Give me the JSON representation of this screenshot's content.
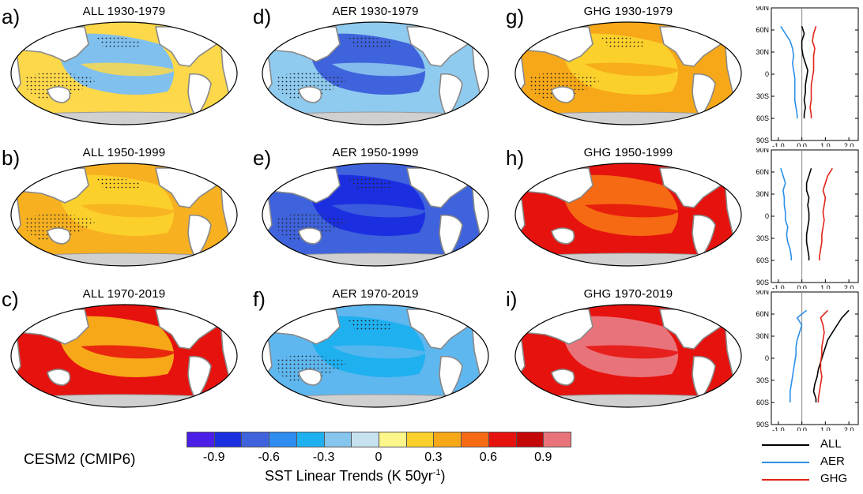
{
  "model_label": "CESM2 (CMIP6)",
  "colorbar": {
    "title_main": "SST Linear Trends (K 50yr",
    "title_sup": "-1",
    "title_end": ")",
    "colors": [
      "#4b1fe8",
      "#1c2fe0",
      "#3f63dc",
      "#2f8cf0",
      "#1fb0f0",
      "#86c5ee",
      "#c7e2ef",
      "#fdf68a",
      "#fcd02b",
      "#f7a818",
      "#f56a12",
      "#e6120e",
      "#c40808",
      "#e9737a"
    ],
    "tick_labels": [
      "-0.9",
      "-0.6",
      "-0.3",
      "0",
      "0.3",
      "0.6",
      "0.9"
    ]
  },
  "panels": [
    {
      "letter": "a)",
      "title": "ALL 1930-1979",
      "bg": "#fcd84a",
      "pac": "#7fc0ee",
      "dots": true
    },
    {
      "letter": "b)",
      "title": "ALL 1950-1999",
      "bg": "#f7b020",
      "pac": "#fcd02b",
      "dots": true
    },
    {
      "letter": "c)",
      "title": "ALL 1970-2019",
      "bg": "#e6120e",
      "pac": "#f7a818",
      "dots": false
    },
    {
      "letter": "d)",
      "title": "AER 1930-1979",
      "bg": "#8fcaef",
      "pac": "#3f63dc",
      "dots": true
    },
    {
      "letter": "e)",
      "title": "AER 1950-1999",
      "bg": "#3f63dc",
      "pac": "#1c2fe0",
      "dots": true
    },
    {
      "letter": "f)",
      "title": "AER 1970-2019",
      "bg": "#5fb7ef",
      "pac": "#1fb0f0",
      "dots": true
    },
    {
      "letter": "g)",
      "title": "GHG 1930-1979",
      "bg": "#f7a818",
      "pac": "#fcd02b",
      "dots": true
    },
    {
      "letter": "h)",
      "title": "GHG 1950-1999",
      "bg": "#e6120e",
      "pac": "#f56a12",
      "dots": false
    },
    {
      "letter": "i)",
      "title": "GHG 1970-2019",
      "bg": "#e6120e",
      "pac": "#e9737a",
      "dots": false
    }
  ],
  "profiles": {
    "y_ticks": [
      "90N",
      "60N",
      "30N",
      "0",
      "30S",
      "60S",
      "90S"
    ],
    "x_ticks": [
      "-1.0",
      "0.0",
      "1.0",
      "2.0"
    ],
    "xlim": [
      -1.3,
      2.4
    ],
    "lat": [
      65,
      55,
      45,
      35,
      25,
      15,
      5,
      -5,
      -15,
      -25,
      -35,
      -45,
      -55,
      -60
    ],
    "rows": [
      {
        "ALL": [
          0.0,
          0.1,
          0.0,
          0.0,
          0.05,
          0.15,
          0.25,
          0.2,
          0.15,
          0.15,
          0.1,
          0.15,
          0.1,
          0.1
        ],
        "AER": [
          -0.9,
          -0.7,
          -0.5,
          -0.4,
          -0.35,
          -0.4,
          -0.35,
          -0.3,
          -0.3,
          -0.3,
          -0.3,
          -0.25,
          -0.2,
          -0.2
        ],
        "GHG": [
          0.6,
          0.5,
          0.45,
          0.55,
          0.5,
          0.5,
          0.5,
          0.45,
          0.4,
          0.4,
          0.4,
          0.35,
          0.4,
          0.4
        ]
      },
      {
        "ALL": [
          0.4,
          0.3,
          0.2,
          0.2,
          0.3,
          0.25,
          0.3,
          0.3,
          0.25,
          0.2,
          0.2,
          0.25,
          0.3,
          0.3
        ],
        "AER": [
          -0.9,
          -0.8,
          -0.7,
          -0.8,
          -0.75,
          -0.75,
          -0.7,
          -0.7,
          -0.6,
          -0.65,
          -0.6,
          -0.5,
          -0.45,
          -0.45
        ],
        "GHG": [
          1.3,
          1.1,
          1.0,
          0.9,
          1.0,
          0.95,
          0.9,
          0.95,
          0.9,
          0.85,
          0.85,
          0.8,
          0.75,
          0.75
        ]
      },
      {
        "ALL": [
          2.0,
          1.7,
          1.5,
          1.3,
          1.1,
          1.0,
          0.9,
          0.8,
          0.7,
          0.65,
          0.55,
          0.5,
          0.6,
          0.6
        ],
        "AER": [
          0.2,
          -0.2,
          0.0,
          -0.1,
          -0.2,
          -0.25,
          -0.25,
          -0.3,
          -0.35,
          -0.4,
          -0.45,
          -0.5,
          -0.5,
          -0.5
        ],
        "GHG": [
          1.1,
          0.8,
          0.9,
          0.95,
          0.9,
          0.85,
          0.85,
          0.8,
          0.8,
          0.85,
          0.8,
          0.75,
          0.7,
          0.7
        ]
      }
    ],
    "series_colors": {
      "ALL": "#000000",
      "AER": "#2b8fe8",
      "GHG": "#e0241a"
    }
  },
  "legend": [
    {
      "name": "ALL",
      "color": "#000000"
    },
    {
      "name": "AER",
      "color": "#2b8fe8"
    },
    {
      "name": "GHG",
      "color": "#e0241a"
    }
  ]
}
